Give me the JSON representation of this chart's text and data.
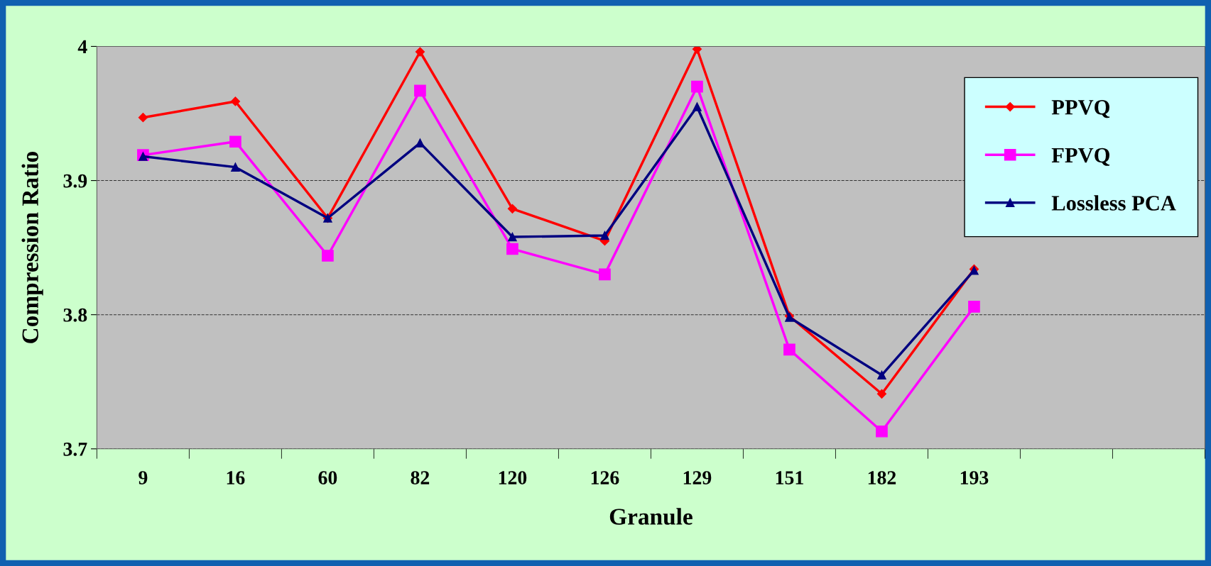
{
  "chart_data": {
    "type": "line",
    "xlabel": "Granule",
    "ylabel": "Compression Ratio",
    "categories": [
      "9",
      "16",
      "60",
      "82",
      "120",
      "126",
      "129",
      "151",
      "182",
      "193",
      null,
      null
    ],
    "series": [
      {
        "name": "PPVQ",
        "color": "#ff0000",
        "marker": "diamond",
        "values": [
          3.947,
          3.959,
          3.872,
          3.996,
          3.879,
          3.855,
          3.998,
          3.799,
          3.741,
          3.834,
          null,
          null
        ]
      },
      {
        "name": "FPVQ",
        "color": "#ff00ff",
        "marker": "square",
        "values": [
          3.919,
          3.929,
          3.844,
          3.967,
          3.849,
          3.83,
          3.97,
          3.774,
          3.713,
          3.806,
          null,
          null
        ]
      },
      {
        "name": "Lossless PCA",
        "color": "#000080",
        "marker": "triangle",
        "values": [
          3.918,
          3.91,
          3.872,
          3.928,
          3.858,
          3.859,
          3.955,
          3.798,
          3.755,
          3.833,
          null,
          null
        ]
      }
    ],
    "ylim": [
      3.7,
      4.0
    ],
    "yticks": [
      3.7,
      3.8,
      3.9,
      4
    ],
    "grid": "y",
    "legend": "right",
    "line_style": "solid"
  }
}
